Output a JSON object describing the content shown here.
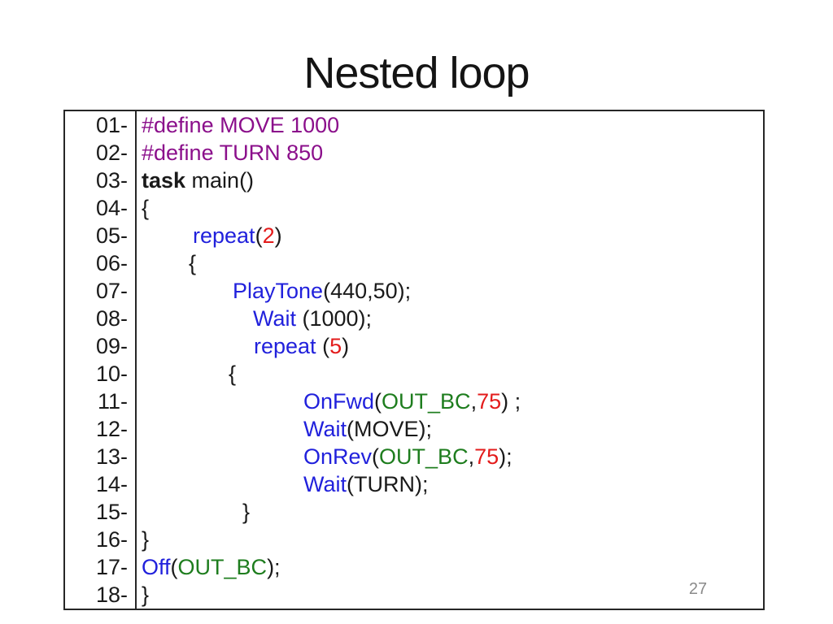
{
  "slide": {
    "title": "Nested loop",
    "page_number": "27"
  },
  "colors": {
    "black": "#1a1a1a",
    "purple": "#8b0f8b",
    "blue": "#2121dc",
    "green": "#1e7d1e",
    "red": "#e31b1b",
    "gray": "#8a8a8a"
  },
  "code": {
    "lines": [
      {
        "num": "01-",
        "indent": 0,
        "segments": [
          {
            "text": "#define MOVE 1000",
            "color": "purple"
          }
        ]
      },
      {
        "num": "02-",
        "indent": 0,
        "segments": [
          {
            "text": "#define TURN 850",
            "color": "purple"
          }
        ]
      },
      {
        "num": "03-",
        "indent": 0,
        "segments": [
          {
            "text": "task",
            "color": "black",
            "bold": true
          },
          {
            "text": " main()",
            "color": "black"
          }
        ]
      },
      {
        "num": "04-",
        "indent": 0,
        "segments": [
          {
            "text": "{",
            "color": "black"
          }
        ]
      },
      {
        "num": "05-",
        "indent": 63,
        "segments": [
          {
            "text": "repeat",
            "color": "blue"
          },
          {
            "text": "(",
            "color": "black"
          },
          {
            "text": "2",
            "color": "red"
          },
          {
            "text": ")",
            "color": "black"
          }
        ]
      },
      {
        "num": "06-",
        "indent": 58,
        "segments": [
          {
            "text": "{",
            "color": "black"
          }
        ]
      },
      {
        "num": "07-",
        "indent": 112,
        "segments": [
          {
            "text": "PlayTone",
            "color": "blue"
          },
          {
            "text": "(440,50);",
            "color": "black"
          }
        ]
      },
      {
        "num": "08-",
        "indent": 137,
        "segments": [
          {
            "text": "Wait",
            "color": "blue"
          },
          {
            "text": " (1000);",
            "color": "black"
          }
        ]
      },
      {
        "num": "09-",
        "indent": 138,
        "segments": [
          {
            "text": "repeat",
            "color": "blue"
          },
          {
            "text": " (",
            "color": "black"
          },
          {
            "text": "5",
            "color": "red"
          },
          {
            "text": ")",
            "color": "black"
          }
        ]
      },
      {
        "num": "10-",
        "indent": 107,
        "segments": [
          {
            "text": "{",
            "color": "black"
          }
        ]
      },
      {
        "num": "11-",
        "indent": 199,
        "segments": [
          {
            "text": "OnFwd",
            "color": "blue"
          },
          {
            "text": "(",
            "color": "black"
          },
          {
            "text": "OUT_BC",
            "color": "green"
          },
          {
            "text": ",",
            "color": "black"
          },
          {
            "text": "75",
            "color": "red"
          },
          {
            "text": ") ;",
            "color": "black"
          }
        ]
      },
      {
        "num": "12-",
        "indent": 199,
        "segments": [
          {
            "text": "Wait",
            "color": "blue"
          },
          {
            "text": "(MOVE);",
            "color": "black"
          }
        ]
      },
      {
        "num": "13-",
        "indent": 199,
        "segments": [
          {
            "text": "OnRev",
            "color": "blue"
          },
          {
            "text": "(",
            "color": "black"
          },
          {
            "text": "OUT_BC",
            "color": "green"
          },
          {
            "text": ",",
            "color": "black"
          },
          {
            "text": "75",
            "color": "red"
          },
          {
            "text": ");",
            "color": "black"
          }
        ]
      },
      {
        "num": "14-",
        "indent": 199,
        "segments": [
          {
            "text": "Wait",
            "color": "blue"
          },
          {
            "text": "(TURN);",
            "color": "black"
          }
        ]
      },
      {
        "num": "15-",
        "indent": 124,
        "segments": [
          {
            "text": "}",
            "color": "black"
          }
        ]
      },
      {
        "num": "16-",
        "indent": 0,
        "segments": [
          {
            "text": "}",
            "color": "black"
          }
        ]
      },
      {
        "num": "17-",
        "indent": 0,
        "segments": [
          {
            "text": "Off",
            "color": "blue"
          },
          {
            "text": "(",
            "color": "black"
          },
          {
            "text": "OUT_BC",
            "color": "green"
          },
          {
            "text": ");",
            "color": "black"
          }
        ]
      },
      {
        "num": "18-",
        "indent": 0,
        "segments": [
          {
            "text": "}",
            "color": "black"
          }
        ]
      }
    ]
  }
}
